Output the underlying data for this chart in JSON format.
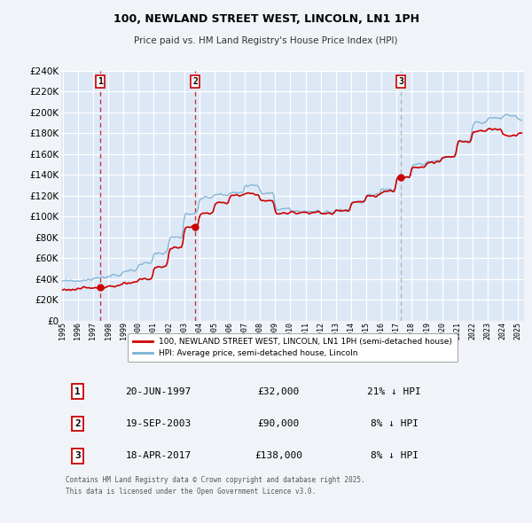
{
  "title": "100, NEWLAND STREET WEST, LINCOLN, LN1 1PH",
  "subtitle": "Price paid vs. HM Land Registry's House Price Index (HPI)",
  "background_color": "#f0f4f8",
  "plot_bg_color": "#dce8f5",
  "grid_color": "#ffffff",
  "ylim": [
    0,
    240000
  ],
  "yticks": [
    0,
    20000,
    40000,
    60000,
    80000,
    100000,
    120000,
    140000,
    160000,
    180000,
    200000,
    220000,
    240000
  ],
  "xlim_start": 1994.9,
  "xlim_end": 2025.4,
  "sale_dates": [
    1997.46,
    2003.72,
    2017.29
  ],
  "sale_prices": [
    32000,
    90000,
    138000
  ],
  "sale_labels": [
    "1",
    "2",
    "3"
  ],
  "vline_colors": [
    "#cc0000",
    "#cc0000",
    "#aaaaaa"
  ],
  "hpi_line_color": "#7ab0d4",
  "price_line_color": "#cc0000",
  "legend_label_price": "100, NEWLAND STREET WEST, LINCOLN, LN1 1PH (semi-detached house)",
  "legend_label_hpi": "HPI: Average price, semi-detached house, Lincoln",
  "table_rows": [
    {
      "num": "1",
      "date": "20-JUN-1997",
      "price": "£32,000",
      "hpi": "21% ↓ HPI"
    },
    {
      "num": "2",
      "date": "19-SEP-2003",
      "price": "£90,000",
      "hpi": "8% ↓ HPI"
    },
    {
      "num": "3",
      "date": "18-APR-2017",
      "price": "£138,000",
      "hpi": "8% ↓ HPI"
    }
  ],
  "footer": "Contains HM Land Registry data © Crown copyright and database right 2025.\nThis data is licensed under the Open Government Licence v3.0."
}
